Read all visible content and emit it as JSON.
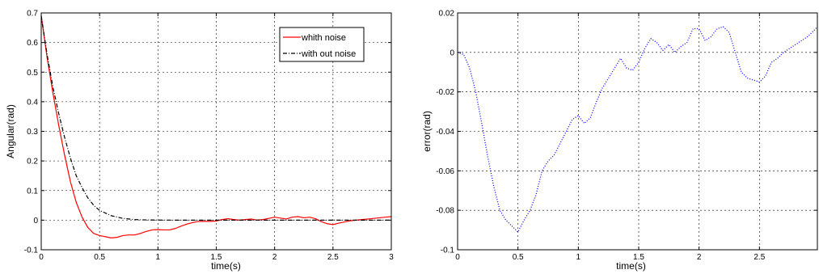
{
  "chart_data": [
    {
      "type": "line",
      "xlabel": "time(s)",
      "ylabel": "Angular(rad)",
      "xlim": [
        0,
        3
      ],
      "ylim": [
        -0.1,
        0.7
      ],
      "xticks": [
        0,
        0.5,
        1,
        1.5,
        2,
        2.5,
        3
      ],
      "xtick_labels": [
        "0",
        "0.5",
        "1",
        "1.5",
        "2",
        "2.5",
        "3"
      ],
      "yticks": [
        -0.1,
        0,
        0.1,
        0.2,
        0.3,
        0.4,
        0.5,
        0.6,
        0.7
      ],
      "ytick_labels": [
        "-0.1",
        "0",
        "0.1",
        "0.2",
        "0.3",
        "0.4",
        "0.5",
        "0.6",
        "0.7"
      ],
      "grid": true,
      "legend_position": "top-right",
      "series": [
        {
          "name": "whith noise",
          "color": "#ff0000",
          "line_style": "solid",
          "x": [
            0,
            0.05,
            0.1,
            0.15,
            0.2,
            0.25,
            0.3,
            0.35,
            0.4,
            0.45,
            0.5,
            0.55,
            0.6,
            0.65,
            0.7,
            0.75,
            0.8,
            0.85,
            0.9,
            0.95,
            1.0,
            1.05,
            1.1,
            1.15,
            1.2,
            1.25,
            1.3,
            1.35,
            1.4,
            1.45,
            1.5,
            1.55,
            1.6,
            1.65,
            1.7,
            1.75,
            1.8,
            1.85,
            1.9,
            1.95,
            2.0,
            2.05,
            2.1,
            2.15,
            2.2,
            2.25,
            2.3,
            2.35,
            2.4,
            2.45,
            2.5,
            2.55,
            2.6,
            2.65,
            2.7,
            2.75,
            2.8,
            2.85,
            2.9,
            2.95,
            3.0
          ],
          "y": [
            0.69,
            0.55,
            0.43,
            0.32,
            0.22,
            0.13,
            0.06,
            0.01,
            -0.025,
            -0.045,
            -0.052,
            -0.056,
            -0.06,
            -0.058,
            -0.052,
            -0.05,
            -0.05,
            -0.045,
            -0.038,
            -0.033,
            -0.032,
            -0.033,
            -0.033,
            -0.028,
            -0.02,
            -0.013,
            -0.008,
            -0.004,
            -0.004,
            -0.004,
            -0.003,
            0.002,
            0.005,
            0.002,
            0.0,
            0.002,
            0.004,
            0.0,
            0.002,
            0.006,
            0.01,
            0.007,
            0.004,
            0.01,
            0.012,
            0.008,
            0.01,
            0.005,
            -0.005,
            -0.012,
            -0.015,
            -0.01,
            -0.006,
            -0.002,
            0.0,
            0.002,
            0.004,
            0.006,
            0.008,
            0.01,
            0.012
          ]
        },
        {
          "name": "with out noise",
          "color": "#000000",
          "line_style": "dash-dot",
          "x": [
            0,
            0.05,
            0.1,
            0.15,
            0.2,
            0.25,
            0.3,
            0.35,
            0.4,
            0.45,
            0.5,
            0.6,
            0.7,
            0.8,
            0.9,
            1.0,
            1.2,
            1.5,
            2.0,
            2.5,
            3.0
          ],
          "y": [
            0.69,
            0.56,
            0.45,
            0.36,
            0.28,
            0.21,
            0.15,
            0.11,
            0.075,
            0.05,
            0.033,
            0.015,
            0.006,
            0.002,
            0.0008,
            0.0003,
            0.0,
            0.0,
            0.0,
            0.0,
            0.0
          ]
        }
      ]
    },
    {
      "type": "line",
      "xlabel": "time(s)",
      "ylabel": "error(rad)",
      "xlim": [
        0,
        2.98
      ],
      "ylim": [
        -0.1,
        0.02
      ],
      "xticks": [
        0,
        0.5,
        1,
        1.5,
        2,
        2.5
      ],
      "xtick_labels": [
        "0",
        "0.5",
        "1",
        "1.5",
        "2",
        "2.5"
      ],
      "yticks": [
        -0.1,
        -0.08,
        -0.06,
        -0.04,
        -0.02,
        0,
        0.02
      ],
      "ytick_labels": [
        "-0.1",
        "-0.08",
        "-0.06",
        "-0.04",
        "-0.02",
        "0",
        "0.02"
      ],
      "grid": true,
      "series": [
        {
          "color": "#0000ff",
          "line_style": "dotted",
          "x": [
            0,
            0.05,
            0.1,
            0.15,
            0.2,
            0.25,
            0.3,
            0.35,
            0.4,
            0.45,
            0.5,
            0.55,
            0.6,
            0.65,
            0.7,
            0.75,
            0.8,
            0.85,
            0.9,
            0.95,
            1.0,
            1.05,
            1.1,
            1.15,
            1.2,
            1.25,
            1.3,
            1.35,
            1.4,
            1.45,
            1.5,
            1.55,
            1.6,
            1.65,
            1.7,
            1.75,
            1.8,
            1.85,
            1.9,
            1.95,
            2.0,
            2.05,
            2.1,
            2.15,
            2.2,
            2.25,
            2.3,
            2.35,
            2.4,
            2.45,
            2.5,
            2.55,
            2.6,
            2.65,
            2.7,
            2.75,
            2.8,
            2.85,
            2.9,
            2.95,
            2.98
          ],
          "y": [
            0.0,
            -0.001,
            -0.008,
            -0.02,
            -0.036,
            -0.053,
            -0.068,
            -0.08,
            -0.085,
            -0.088,
            -0.091,
            -0.085,
            -0.08,
            -0.072,
            -0.06,
            -0.055,
            -0.052,
            -0.046,
            -0.04,
            -0.034,
            -0.032,
            -0.036,
            -0.033,
            -0.025,
            -0.018,
            -0.013,
            -0.008,
            -0.003,
            -0.008,
            -0.009,
            -0.005,
            0.002,
            0.007,
            0.005,
            0.001,
            0.004,
            0.0,
            0.003,
            0.005,
            0.012,
            0.012,
            0.006,
            0.008,
            0.012,
            0.013,
            0.01,
            0.0,
            -0.01,
            -0.013,
            -0.014,
            -0.015,
            -0.012,
            -0.005,
            -0.003,
            0.0,
            0.002,
            0.004,
            0.006,
            0.008,
            0.011,
            0.013
          ]
        }
      ]
    }
  ]
}
